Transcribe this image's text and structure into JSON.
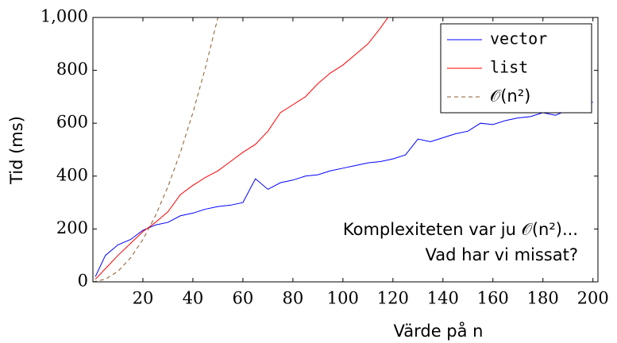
{
  "chart_data": {
    "type": "line",
    "xlabel": "Värde på n",
    "ylabel": "Tid (ms)",
    "xlim": [
      0,
      202
    ],
    "ylim": [
      0,
      1000
    ],
    "xticks": [
      20,
      40,
      60,
      80,
      100,
      120,
      140,
      160,
      180,
      200
    ],
    "yticks": [
      0,
      200,
      400,
      600,
      800,
      {
        "value": 1000,
        "label": "1,000"
      }
    ],
    "legend": "upper right",
    "annotation": [
      "Komplexiteten var ju 𝒪(n²)...",
      "Vad har vi missat?"
    ],
    "series": [
      {
        "name": "vector",
        "color": "#0000ff",
        "dash": false,
        "x": [
          1,
          5,
          10,
          15,
          20,
          25,
          30,
          35,
          40,
          45,
          50,
          55,
          60,
          65,
          70,
          75,
          80,
          85,
          90,
          95,
          100,
          105,
          110,
          115,
          120,
          125,
          130,
          135,
          140,
          145,
          150,
          155,
          160,
          165,
          170,
          175,
          180,
          185,
          190,
          195,
          200
        ],
        "values": [
          20,
          100,
          140,
          160,
          195,
          215,
          225,
          250,
          260,
          275,
          285,
          290,
          300,
          390,
          350,
          375,
          385,
          400,
          405,
          420,
          430,
          440,
          450,
          455,
          465,
          480,
          540,
          530,
          545,
          560,
          570,
          600,
          595,
          610,
          620,
          625,
          640,
          630,
          650,
          660,
          680
        ]
      },
      {
        "name": "list",
        "color": "#ff0000",
        "dash": false,
        "x": [
          1,
          5,
          10,
          15,
          20,
          25,
          30,
          35,
          40,
          45,
          50,
          55,
          60,
          65,
          70,
          75,
          80,
          85,
          90,
          95,
          100,
          105,
          110,
          115,
          118
        ],
        "values": [
          10,
          50,
          100,
          145,
          190,
          225,
          265,
          330,
          365,
          395,
          420,
          455,
          490,
          520,
          570,
          640,
          670,
          700,
          750,
          790,
          820,
          860,
          900,
          960,
          1000
        ]
      },
      {
        "name": "𝒪(n²)",
        "color": "#8b5a2b",
        "dash": true,
        "x": [
          0,
          5,
          10,
          15,
          20,
          25,
          30,
          35,
          40,
          45,
          50
        ],
        "values": [
          0,
          10,
          40,
          90,
          160,
          250,
          360,
          490,
          640,
          810,
          1000
        ]
      }
    ]
  }
}
